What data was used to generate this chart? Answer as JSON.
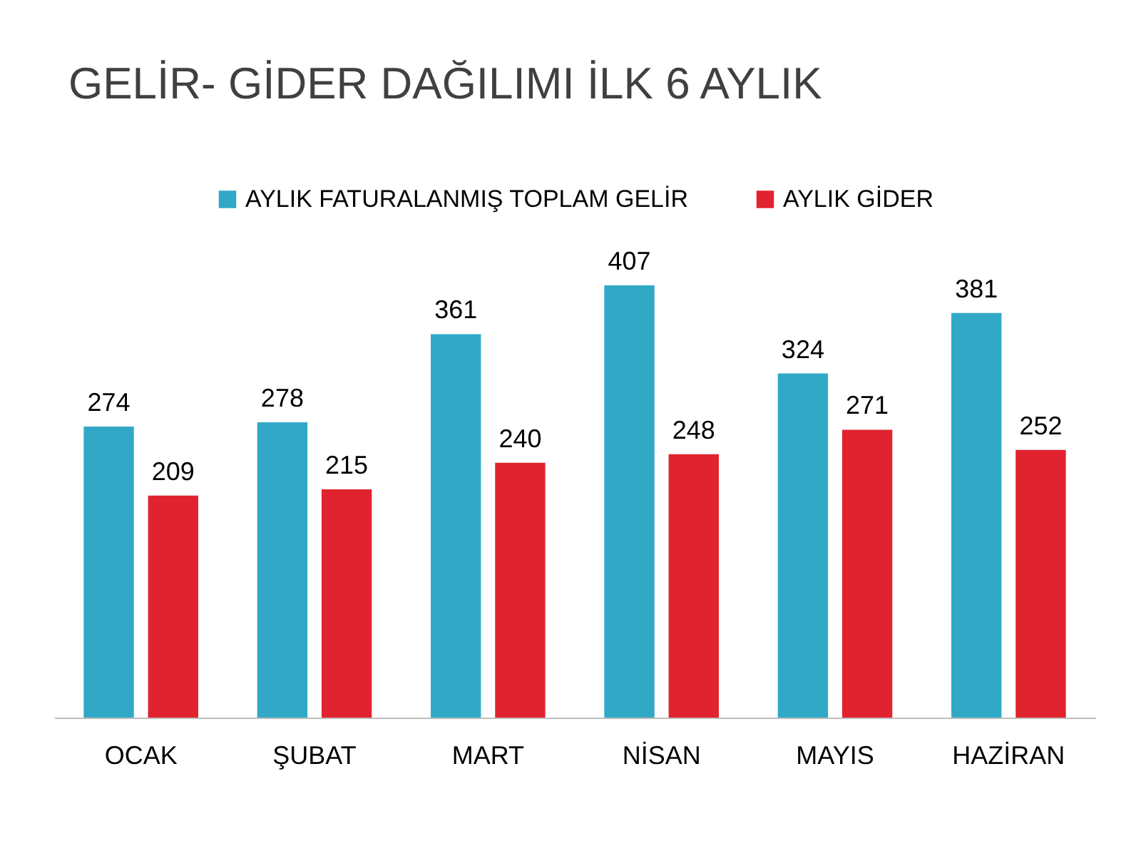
{
  "chart_data": {
    "type": "bar",
    "title": "GELİR- GİDER DAĞILIMI İLK 6 AYLIK",
    "categories": [
      "OCAK",
      "ŞUBAT",
      "MART",
      "NİSAN",
      "MAYIS",
      "HAZİRAN"
    ],
    "series": [
      {
        "name": "AYLIK FATURALANMIŞ TOPLAM GELİR",
        "color": "#31a9c6",
        "values": [
          274,
          278,
          361,
          407,
          324,
          381
        ]
      },
      {
        "name": "AYLIK GİDER",
        "color": "#e0232f",
        "values": [
          209,
          215,
          240,
          248,
          271,
          252
        ]
      }
    ],
    "tick_labels": "x",
    "data_labels": true,
    "legend": "top",
    "grid": false
  }
}
